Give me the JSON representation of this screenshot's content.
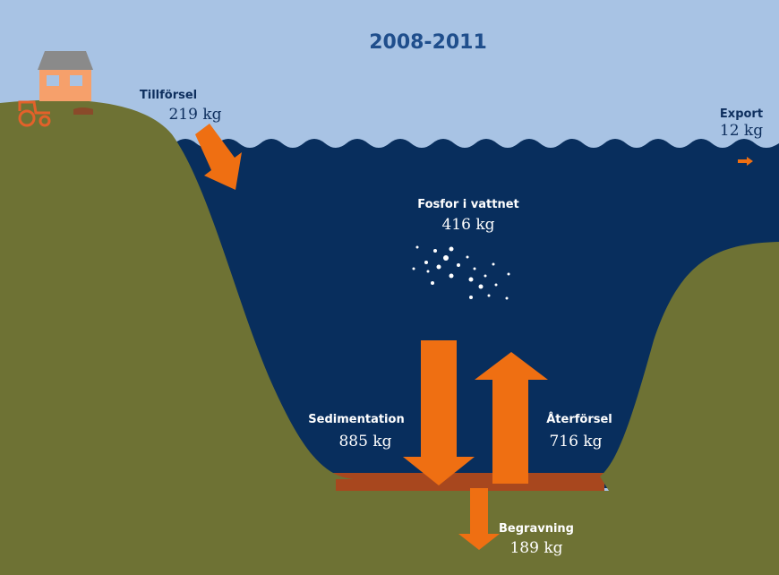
{
  "title": "2008-2011",
  "flows": [
    {
      "label": "Tillförsel",
      "amount": "219 kg"
    },
    {
      "label": "Export",
      "amount": "12 kg"
    },
    {
      "label": "Fosfor i vattnet",
      "amount": "416 kg"
    },
    {
      "label": "Sedimentation",
      "amount": "885 kg"
    },
    {
      "label": "Återförsel",
      "amount": "716 kg"
    },
    {
      "label": "Begravning",
      "amount": "189 kg"
    }
  ]
}
